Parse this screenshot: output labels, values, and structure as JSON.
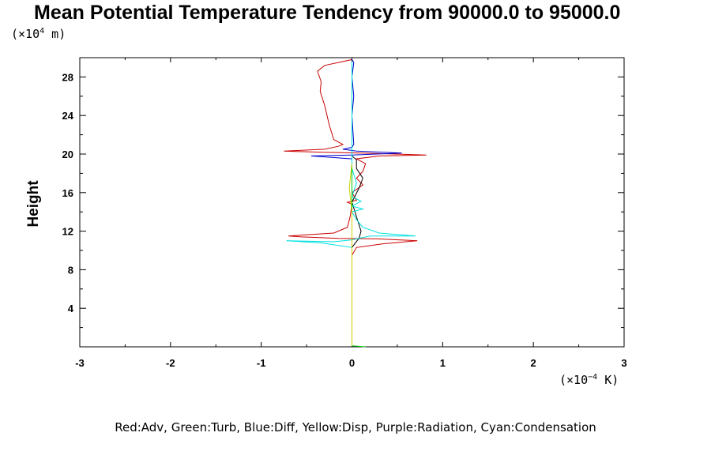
{
  "chart_data": {
    "type": "line",
    "title": "Mean Potential Temperature Tendency from 90000.0 to 95000.0",
    "ylabel": "Height",
    "xlabel": "",
    "y_unit_base": "(×10",
    "y_unit_exp": "4",
    "y_unit_tail": " m)",
    "x_unit_base": "(×10",
    "x_unit_exp": "−4",
    "x_unit_tail": " K)",
    "xlim": [
      -3,
      3
    ],
    "ylim": [
      0,
      30
    ],
    "x_ticks": [
      -3,
      -2,
      -1,
      0,
      1,
      2,
      3
    ],
    "x_tick_labels": [
      "-3",
      "-2",
      "-1",
      "0",
      "1",
      "2",
      "3"
    ],
    "y_ticks": [
      4,
      8,
      12,
      16,
      20,
      24,
      28
    ],
    "y_tick_labels": [
      "4",
      "8",
      "12",
      "16",
      "20",
      "24",
      "28"
    ],
    "legend_text": "Red:Adv, Green:Turb, Blue:Diff, Yellow:Disp, Purple:Radiation, Cyan:Condensation",
    "colors": {
      "adv": "#cc0000",
      "turb": "#00cc00",
      "diff": "#0000cc",
      "disp": "#cccc00",
      "total": "#000000",
      "condensation": "#00e0e0"
    },
    "series": [
      {
        "name": "Adv",
        "color": "#cc0000",
        "points": [
          [
            0.0,
            0.1
          ],
          [
            0.0,
            9.5
          ],
          [
            0.05,
            10.3
          ],
          [
            0.35,
            10.7
          ],
          [
            0.72,
            11.0
          ],
          [
            0.3,
            11.2
          ],
          [
            -0.15,
            11.25
          ],
          [
            -0.55,
            11.4
          ],
          [
            -0.7,
            11.5
          ],
          [
            -0.2,
            11.8
          ],
          [
            -0.05,
            12.4
          ],
          [
            -0.02,
            13.5
          ],
          [
            0.0,
            14.8
          ],
          [
            -0.05,
            15.0
          ],
          [
            0.05,
            15.2
          ],
          [
            0.0,
            16.0
          ],
          [
            0.12,
            16.8
          ],
          [
            0.05,
            17.5
          ],
          [
            0.12,
            18.2
          ],
          [
            0.15,
            19.0
          ],
          [
            0.05,
            19.5
          ],
          [
            0.3,
            19.8
          ],
          [
            0.82,
            19.9
          ],
          [
            0.1,
            20.1
          ],
          [
            -0.35,
            20.2
          ],
          [
            -0.75,
            20.3
          ],
          [
            -0.3,
            20.5
          ],
          [
            -0.15,
            20.8
          ],
          [
            -0.1,
            21.0
          ],
          [
            -0.2,
            21.5
          ],
          [
            -0.25,
            23.0
          ],
          [
            -0.3,
            25.0
          ],
          [
            -0.35,
            26.5
          ],
          [
            -0.34,
            27.5
          ],
          [
            -0.38,
            28.6
          ],
          [
            -0.3,
            29.2
          ],
          [
            -0.1,
            29.6
          ],
          [
            0.0,
            29.8
          ]
        ]
      },
      {
        "name": "Diff",
        "color": "#0000cc",
        "points": [
          [
            0.0,
            0.1
          ],
          [
            0.0,
            19.5
          ],
          [
            -0.45,
            19.8
          ],
          [
            0.0,
            19.9
          ],
          [
            0.55,
            20.1
          ],
          [
            0.05,
            20.3
          ],
          [
            -0.1,
            20.5
          ],
          [
            0.0,
            20.7
          ],
          [
            0.02,
            21.0
          ],
          [
            0.0,
            24.0
          ],
          [
            0.02,
            26.0
          ],
          [
            0.0,
            28.0
          ],
          [
            0.02,
            29.5
          ],
          [
            0.0,
            29.8
          ]
        ]
      },
      {
        "name": "Total",
        "color": "#000000",
        "points": [
          [
            0.0,
            0.1
          ],
          [
            0.0,
            9.9
          ],
          [
            0.0,
            10.3
          ],
          [
            0.08,
            11.3
          ],
          [
            0.1,
            12.0
          ],
          [
            0.05,
            13.5
          ],
          [
            0.0,
            15.0
          ],
          [
            0.08,
            16.5
          ],
          [
            0.12,
            17.5
          ],
          [
            0.05,
            18.5
          ],
          [
            0.05,
            19.4
          ],
          [
            0.0,
            19.8
          ]
        ]
      },
      {
        "name": "Condensation",
        "color": "#00e0e0",
        "points": [
          [
            0.0,
            0.1
          ],
          [
            0.0,
            10.3
          ],
          [
            -0.35,
            10.8
          ],
          [
            -0.72,
            11.0
          ],
          [
            -0.2,
            10.9
          ],
          [
            0.0,
            11.1
          ],
          [
            0.2,
            11.5
          ],
          [
            0.7,
            11.5
          ],
          [
            0.3,
            11.8
          ],
          [
            0.12,
            12.4
          ],
          [
            0.05,
            13.2
          ],
          [
            0.0,
            14.0
          ],
          [
            0.12,
            14.3
          ],
          [
            0.0,
            14.6
          ],
          [
            0.1,
            15.1
          ],
          [
            0.0,
            15.6
          ],
          [
            0.05,
            17.0
          ],
          [
            0.0,
            18.5
          ],
          [
            0.0,
            20.0
          ],
          [
            0.0,
            29.6
          ]
        ]
      },
      {
        "name": "Turb",
        "color": "#00cc00",
        "points": [
          [
            0.15,
            0.0
          ],
          [
            0.0,
            0.1
          ],
          [
            0.0,
            19.0
          ]
        ]
      },
      {
        "name": "Disp",
        "color": "#cccc00",
        "points": [
          [
            0.0,
            0.1
          ],
          [
            0.0,
            14.0
          ],
          [
            -0.03,
            16.5
          ],
          [
            0.0,
            19.0
          ]
        ]
      }
    ]
  }
}
